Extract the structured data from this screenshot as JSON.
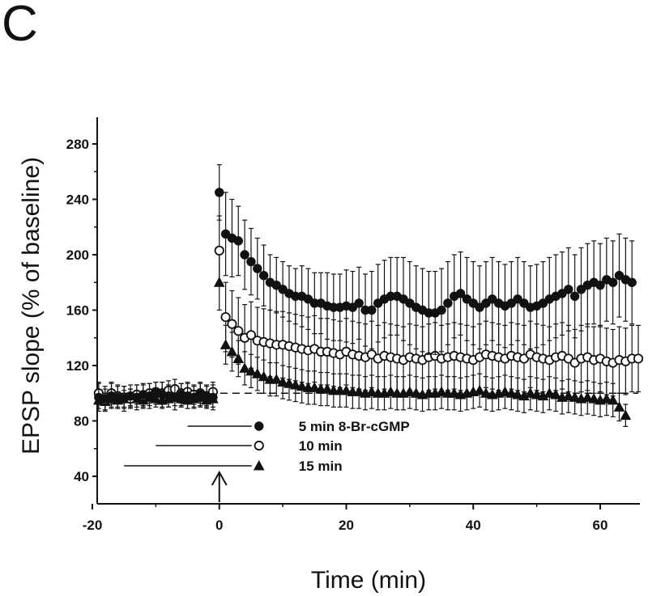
{
  "panel_label": "C",
  "chart_data": {
    "type": "scatter",
    "xlabel": "Time (min)",
    "ylabel": "EPSP slope (% of baseline)",
    "xlim": [
      -20,
      67
    ],
    "ylim": [
      20,
      300
    ],
    "x_ticks": [
      -20,
      0,
      20,
      40,
      60
    ],
    "y_ticks": [
      40,
      80,
      120,
      160,
      200,
      240,
      280
    ],
    "baseline_reference": 100,
    "arrow_at_x": 0,
    "series": [
      {
        "name": "5 min 8-Br-cGMP",
        "marker": "filled-circle",
        "application_start": -5,
        "application_end": 0,
        "x": [
          -19,
          -18,
          -17,
          -16,
          -15,
          -14,
          -13,
          -12,
          -11,
          -10,
          -9,
          -8,
          -7,
          -6,
          -5,
          -4,
          -3,
          -2,
          -1,
          0,
          1,
          2,
          3,
          4,
          5,
          6,
          7,
          8,
          9,
          10,
          11,
          12,
          13,
          14,
          15,
          16,
          17,
          18,
          19,
          20,
          21,
          22,
          23,
          24,
          25,
          26,
          27,
          28,
          29,
          30,
          31,
          32,
          33,
          34,
          35,
          36,
          37,
          38,
          39,
          40,
          41,
          42,
          43,
          44,
          45,
          46,
          47,
          48,
          49,
          50,
          51,
          52,
          53,
          54,
          55,
          56,
          57,
          58,
          59,
          60,
          61,
          62,
          63,
          64,
          65
        ],
        "y": [
          97,
          96,
          98,
          97,
          96,
          98,
          97,
          99,
          98,
          100,
          99,
          98,
          97,
          99,
          98,
          97,
          99,
          98,
          97,
          245,
          215,
          212,
          210,
          200,
          195,
          190,
          185,
          180,
          178,
          175,
          172,
          170,
          170,
          168,
          165,
          165,
          163,
          162,
          162,
          163,
          162,
          165,
          160,
          160,
          165,
          168,
          170,
          170,
          168,
          165,
          162,
          160,
          158,
          158,
          160,
          165,
          170,
          172,
          168,
          165,
          162,
          165,
          168,
          165,
          163,
          165,
          168,
          165,
          162,
          163,
          165,
          168,
          170,
          172,
          175,
          170,
          175,
          178,
          180,
          178,
          182,
          180,
          185,
          182,
          180
        ],
        "error": [
          10,
          9,
          9,
          8,
          9,
          8,
          9,
          8,
          9,
          8,
          9,
          8,
          9,
          8,
          9,
          8,
          9,
          8,
          9,
          20,
          30,
          28,
          25,
          25,
          24,
          22,
          22,
          20,
          20,
          20,
          20,
          20,
          22,
          22,
          22,
          22,
          24,
          24,
          24,
          26,
          26,
          26,
          26,
          28,
          28,
          28,
          28,
          28,
          30,
          30,
          30,
          30,
          30,
          30,
          30,
          30,
          30,
          30,
          30,
          30,
          30,
          30,
          30,
          30,
          30,
          30,
          30,
          30,
          30,
          30,
          30,
          30,
          30,
          30,
          30,
          30,
          30,
          30,
          30,
          30,
          30,
          30,
          30,
          30,
          30
        ]
      },
      {
        "name": "10 min",
        "marker": "open-circle",
        "application_start": -10,
        "application_end": 0,
        "x": [
          -19,
          -18,
          -17,
          -16,
          -15,
          -14,
          -13,
          -12,
          -11,
          -10,
          -9,
          -8,
          -7,
          -6,
          -5,
          -4,
          -3,
          -2,
          -1,
          0,
          1,
          2,
          3,
          4,
          5,
          6,
          7,
          8,
          9,
          10,
          11,
          12,
          13,
          14,
          15,
          16,
          17,
          18,
          19,
          20,
          21,
          22,
          23,
          24,
          25,
          26,
          27,
          28,
          29,
          30,
          31,
          32,
          33,
          34,
          35,
          36,
          37,
          38,
          39,
          40,
          41,
          42,
          43,
          44,
          45,
          46,
          47,
          48,
          49,
          50,
          51,
          52,
          53,
          54,
          55,
          56,
          57,
          58,
          59,
          60,
          61,
          62,
          63,
          64,
          65,
          66
        ],
        "y": [
          100,
          95,
          100,
          98,
          97,
          96,
          99,
          98,
          100,
          101,
          100,
          102,
          103,
          100,
          101,
          99,
          100,
          98,
          101,
          203,
          155,
          150,
          145,
          140,
          142,
          138,
          137,
          136,
          135,
          135,
          134,
          133,
          132,
          131,
          132,
          130,
          130,
          129,
          128,
          130,
          128,
          127,
          126,
          128,
          125,
          127,
          126,
          125,
          124,
          126,
          125,
          124,
          126,
          127,
          125,
          126,
          127,
          126,
          125,
          124,
          126,
          128,
          127,
          126,
          125,
          127,
          126,
          125,
          128,
          126,
          125,
          124,
          126,
          127,
          125,
          122,
          125,
          126,
          124,
          125,
          123,
          122,
          124,
          123,
          125,
          125
        ],
        "error": [
          8,
          8,
          8,
          8,
          8,
          7,
          7,
          8,
          7,
          7,
          8,
          7,
          7,
          7,
          7,
          7,
          7,
          7,
          7,
          25,
          25,
          24,
          24,
          24,
          24,
          24,
          24,
          24,
          24,
          24,
          24,
          24,
          24,
          24,
          24,
          24,
          24,
          24,
          24,
          24,
          24,
          24,
          24,
          24,
          24,
          24,
          24,
          24,
          24,
          24,
          24,
          24,
          24,
          24,
          24,
          24,
          24,
          24,
          24,
          24,
          24,
          24,
          24,
          24,
          24,
          24,
          24,
          24,
          24,
          24,
          24,
          24,
          24,
          24,
          24,
          24,
          24,
          24,
          24,
          24,
          24,
          24,
          24,
          24,
          24,
          24
        ]
      },
      {
        "name": "15 min",
        "marker": "filled-triangle",
        "application_start": -15,
        "application_end": 0,
        "x": [
          -19,
          -18,
          -17,
          -16,
          -15,
          -14,
          -13,
          -12,
          -11,
          -10,
          -9,
          -8,
          -7,
          -6,
          -5,
          -4,
          -3,
          -2,
          -1,
          0,
          1,
          2,
          3,
          4,
          5,
          6,
          7,
          8,
          9,
          10,
          11,
          12,
          13,
          14,
          15,
          16,
          17,
          18,
          19,
          20,
          21,
          22,
          23,
          24,
          25,
          26,
          27,
          28,
          29,
          30,
          31,
          32,
          33,
          34,
          35,
          36,
          37,
          38,
          39,
          40,
          41,
          42,
          43,
          44,
          45,
          46,
          47,
          48,
          49,
          50,
          51,
          52,
          53,
          54,
          55,
          56,
          57,
          58,
          59,
          60,
          61,
          62,
          63,
          64
        ],
        "y": [
          95,
          94,
          96,
          95,
          96,
          97,
          96,
          95,
          97,
          96,
          95,
          96,
          97,
          96,
          95,
          96,
          97,
          95,
          96,
          180,
          135,
          130,
          125,
          118,
          116,
          114,
          112,
          110,
          110,
          108,
          107,
          106,
          105,
          104,
          104,
          103,
          103,
          102,
          102,
          102,
          101,
          101,
          100,
          101,
          100,
          100,
          101,
          100,
          100,
          101,
          100,
          99,
          100,
          100,
          101,
          100,
          100,
          99,
          100,
          101,
          102,
          100,
          99,
          100,
          101,
          100,
          99,
          98,
          100,
          99,
          98,
          100,
          99,
          97,
          98,
          97,
          96,
          97,
          96,
          95,
          96,
          95,
          90,
          84
        ],
        "error": [
          6,
          6,
          6,
          6,
          6,
          6,
          6,
          6,
          6,
          6,
          6,
          6,
          6,
          6,
          6,
          6,
          6,
          6,
          6,
          20,
          14,
          14,
          13,
          12,
          12,
          12,
          12,
          12,
          12,
          12,
          12,
          12,
          12,
          12,
          12,
          12,
          12,
          12,
          12,
          12,
          12,
          12,
          12,
          12,
          12,
          12,
          12,
          12,
          12,
          12,
          12,
          12,
          12,
          12,
          12,
          12,
          12,
          12,
          12,
          12,
          12,
          12,
          12,
          12,
          12,
          12,
          12,
          12,
          12,
          12,
          12,
          12,
          12,
          12,
          12,
          12,
          12,
          12,
          12,
          12,
          12,
          12,
          10,
          8
        ]
      }
    ]
  }
}
